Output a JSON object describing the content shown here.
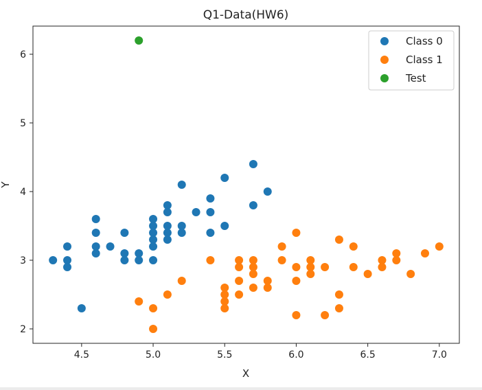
{
  "chart_data": {
    "type": "scatter",
    "title": "Q1-Data(HW6)",
    "xlabel": "X",
    "ylabel": "Y",
    "xlim": [
      4.16,
      7.14
    ],
    "ylim": [
      1.79,
      6.41
    ],
    "xticks": [
      4.5,
      5.0,
      5.5,
      6.0,
      6.5,
      7.0
    ],
    "xtick_labels": [
      "4.5",
      "5.0",
      "5.5",
      "6.0",
      "6.5",
      "7.0"
    ],
    "yticks": [
      2,
      3,
      4,
      5,
      6
    ],
    "ytick_labels": [
      "2",
      "3",
      "4",
      "5",
      "6"
    ],
    "grid": false,
    "legend_position": "top-right",
    "series": [
      {
        "name": "Class 0",
        "color": "#1f77b4",
        "points": [
          [
            4.3,
            3.0
          ],
          [
            4.4,
            3.2
          ],
          [
            4.4,
            3.0
          ],
          [
            4.4,
            2.9
          ],
          [
            4.5,
            2.3
          ],
          [
            4.6,
            3.6
          ],
          [
            4.6,
            3.4
          ],
          [
            4.6,
            3.2
          ],
          [
            4.6,
            3.1
          ],
          [
            4.7,
            3.2
          ],
          [
            4.8,
            3.4
          ],
          [
            4.8,
            3.1
          ],
          [
            4.8,
            3.0
          ],
          [
            4.9,
            3.1
          ],
          [
            4.9,
            3.0
          ],
          [
            5.0,
            3.6
          ],
          [
            5.0,
            3.5
          ],
          [
            5.0,
            3.4
          ],
          [
            5.0,
            3.3
          ],
          [
            5.0,
            3.2
          ],
          [
            5.0,
            3.0
          ],
          [
            5.1,
            3.8
          ],
          [
            5.1,
            3.7
          ],
          [
            5.1,
            3.5
          ],
          [
            5.1,
            3.4
          ],
          [
            5.1,
            3.3
          ],
          [
            5.2,
            4.1
          ],
          [
            5.2,
            3.5
          ],
          [
            5.2,
            3.4
          ],
          [
            5.3,
            3.7
          ],
          [
            5.4,
            3.9
          ],
          [
            5.4,
            3.7
          ],
          [
            5.4,
            3.4
          ],
          [
            5.5,
            4.2
          ],
          [
            5.5,
            3.5
          ],
          [
            5.7,
            4.4
          ],
          [
            5.7,
            3.8
          ],
          [
            5.8,
            4.0
          ]
        ]
      },
      {
        "name": "Class 1",
        "color": "#ff7f0e",
        "points": [
          [
            4.9,
            2.4
          ],
          [
            5.0,
            2.3
          ],
          [
            5.0,
            2.0
          ],
          [
            5.1,
            2.5
          ],
          [
            5.2,
            2.7
          ],
          [
            5.4,
            3.0
          ],
          [
            5.5,
            2.6
          ],
          [
            5.5,
            2.5
          ],
          [
            5.5,
            2.4
          ],
          [
            5.5,
            2.3
          ],
          [
            5.6,
            3.0
          ],
          [
            5.6,
            2.9
          ],
          [
            5.6,
            2.7
          ],
          [
            5.6,
            2.5
          ],
          [
            5.7,
            3.0
          ],
          [
            5.7,
            2.9
          ],
          [
            5.7,
            2.8
          ],
          [
            5.7,
            2.6
          ],
          [
            5.8,
            2.7
          ],
          [
            5.8,
            2.6
          ],
          [
            5.9,
            3.2
          ],
          [
            5.9,
            3.0
          ],
          [
            6.0,
            3.4
          ],
          [
            6.0,
            2.9
          ],
          [
            6.0,
            2.7
          ],
          [
            6.0,
            2.2
          ],
          [
            6.1,
            3.0
          ],
          [
            6.1,
            2.9
          ],
          [
            6.1,
            2.8
          ],
          [
            6.2,
            2.9
          ],
          [
            6.2,
            2.2
          ],
          [
            6.3,
            3.3
          ],
          [
            6.3,
            2.5
          ],
          [
            6.3,
            2.3
          ],
          [
            6.4,
            3.2
          ],
          [
            6.4,
            2.9
          ],
          [
            6.5,
            2.8
          ],
          [
            6.6,
            3.0
          ],
          [
            6.6,
            2.9
          ],
          [
            6.7,
            3.1
          ],
          [
            6.7,
            3.0
          ],
          [
            6.8,
            2.8
          ],
          [
            6.9,
            3.1
          ],
          [
            7.0,
            3.2
          ]
        ]
      },
      {
        "name": "Test",
        "color": "#2ca02c",
        "points": [
          [
            4.9,
            6.2
          ]
        ]
      }
    ]
  }
}
